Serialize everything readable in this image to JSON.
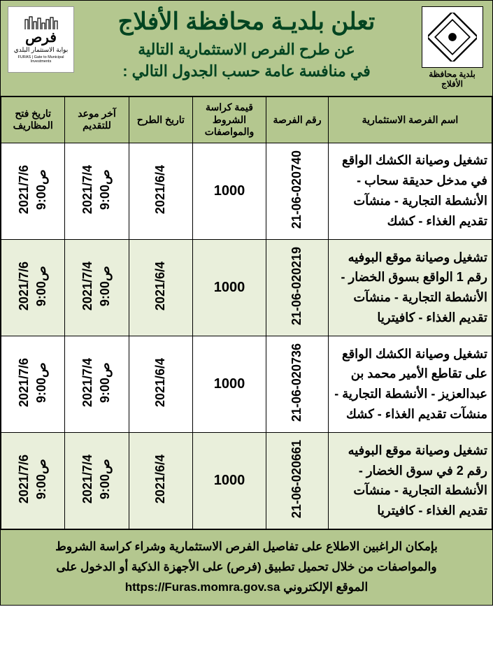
{
  "header": {
    "title": "تعلن بلديـة محافظة الأفلاج",
    "subtitle1": "عن طرح الفرص الاستثمارية التالية",
    "subtitle2": "في منافسة عامة حسب الجدول التالي :",
    "right_caption": "بلدية محافظة الأفلاج",
    "left_brand_ar": "فرص",
    "left_brand_sub_ar": "بوابة الاستثمار البلدي",
    "left_brand_en": "FURAS | Gate to Municipal Investments"
  },
  "table": {
    "headers": {
      "name": "اسم الفرصة الاستثمارية",
      "number": "رقم الفرصة",
      "price": "قيمة كراسة الشروط والمواصفات",
      "issue_date": "تاريخ الطرح",
      "deadline": "آخر موعد للتقديم",
      "opening": "تاريخ فتح المظاريف"
    },
    "rows": [
      {
        "name": "تشغيل وصيانة الكشك الواقع في مدخل حديقة سحاب - الأنشطة التجارية - منشآت تقديم الغذاء - كشك",
        "number": "21-06-020740",
        "price": "1000",
        "issue_date": "2021/6/4",
        "deadline_date": "2021/7/4",
        "deadline_time": "ص9:00",
        "opening_date": "2021/7/6",
        "opening_time": "ص9:00"
      },
      {
        "name": "تشغيل وصيانة موقع البوفيه رقم 1 الواقع بسوق الخضار - الأنشطة التجارية - منشآت تقديم الغذاء - كافيتريا",
        "number": "21-06-020219",
        "price": "1000",
        "issue_date": "2021/6/4",
        "deadline_date": "2021/7/4",
        "deadline_time": "ص9:00",
        "opening_date": "2021/7/6",
        "opening_time": "ص9:00"
      },
      {
        "name": "تشغيل وصيانة الكشك الواقع على تقاطع الأمير محمد بن عبدالعزيز - الأنشطة التجارية - منشآت تقديم الغذاء - كشك",
        "number": "21-06-020736",
        "price": "1000",
        "issue_date": "2021/6/4",
        "deadline_date": "2021/7/4",
        "deadline_time": "ص9:00",
        "opening_date": "2021/7/6",
        "opening_time": "ص9:00"
      },
      {
        "name": "تشغيل وصيانة موقع البوفيه رقم 2 في سوق الخضار - الأنشطة التجارية - منشآت تقديم الغذاء - كافيتريا",
        "number": "21-06-020661",
        "price": "1000",
        "issue_date": "2021/6/4",
        "deadline_date": "2021/7/4",
        "deadline_time": "ص9:00",
        "opening_date": "2021/7/6",
        "opening_time": "ص9:00"
      }
    ]
  },
  "footer": {
    "line1": "بإمكان الراغبين الاطلاع على تفاصيل الفرص الاستثمارية وشراء كراسة الشروط",
    "line2": "والمواصفات من خلال تحميل تطبيق (فرص) على الأجهزة الذكية أو الدخول على",
    "line3_prefix": "الموقع الإلكتروني",
    "url": "https://Furas.momra.gov.sa"
  },
  "colors": {
    "header_bg": "#b4c78f",
    "title_color": "#014421",
    "row_alt": "#e9efdb"
  }
}
